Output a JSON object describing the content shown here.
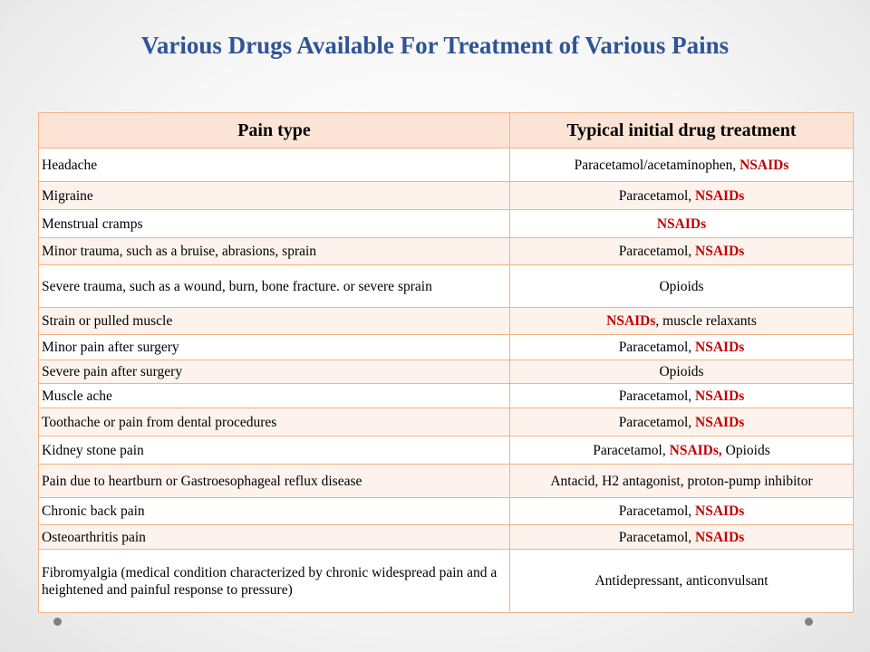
{
  "title": "Various Drugs Available For Treatment of Various Pains",
  "table": {
    "headers": [
      "Pain type",
      "Typical initial drug treatment"
    ],
    "rows": [
      {
        "pain": "Headache",
        "treatment": [
          {
            "t": "Paracetamol/acetaminophen, ",
            "hl": false
          },
          {
            "t": "NSAIDs",
            "hl": true
          }
        ]
      },
      {
        "pain": "Migraine",
        "treatment": [
          {
            "t": "Paracetamol, ",
            "hl": false
          },
          {
            "t": "NSAIDs",
            "hl": true
          }
        ]
      },
      {
        "pain": "Menstrual cramps",
        "treatment": [
          {
            "t": "NSAIDs",
            "hl": true
          }
        ]
      },
      {
        "pain": "Minor trauma, such as a bruise, abrasions, sprain",
        "treatment": [
          {
            "t": "Paracetamol, ",
            "hl": false
          },
          {
            "t": "NSAIDs",
            "hl": true
          }
        ]
      },
      {
        "pain": "Severe trauma, such as a wound, burn, bone fracture. or severe sprain",
        "treatment": [
          {
            "t": "Opioids",
            "hl": false
          }
        ]
      },
      {
        "pain": "Strain or pulled muscle",
        "treatment": [
          {
            "t": "NSAIDs",
            "hl": true
          },
          {
            "t": ", muscle relaxants",
            "hl": false
          }
        ]
      },
      {
        "pain": "Minor pain after surgery",
        "treatment": [
          {
            "t": "Paracetamol, ",
            "hl": false
          },
          {
            "t": "NSAIDs",
            "hl": true
          }
        ]
      },
      {
        "pain": "Severe pain after surgery",
        "treatment": [
          {
            "t": "Opioids",
            "hl": false
          }
        ]
      },
      {
        "pain": "Muscle ache",
        "treatment": [
          {
            "t": "Paracetamol, ",
            "hl": false
          },
          {
            "t": "NSAIDs",
            "hl": true
          }
        ]
      },
      {
        "pain": "Toothache or pain from dental procedures",
        "treatment": [
          {
            "t": "Paracetamol, ",
            "hl": false
          },
          {
            "t": "NSAIDs",
            "hl": true
          }
        ]
      },
      {
        "pain": "Kidney stone pain",
        "treatment": [
          {
            "t": "Paracetamol, ",
            "hl": false
          },
          {
            "t": "NSAIDs,",
            "hl": true
          },
          {
            "t": " Opioids",
            "hl": false
          }
        ]
      },
      {
        "pain": "Pain due to heartburn or Gastroesophageal reflux disease",
        "treatment": [
          {
            "t": "Antacid, H2 antagonist, proton-pump inhibitor",
            "hl": false
          }
        ]
      },
      {
        "pain": "Chronic back pain",
        "treatment": [
          {
            "t": "Paracetamol, ",
            "hl": false
          },
          {
            "t": "NSAIDs",
            "hl": true
          }
        ]
      },
      {
        "pain": "Osteoarthritis pain",
        "treatment": [
          {
            "t": "Paracetamol, ",
            "hl": false
          },
          {
            "t": "NSAIDs",
            "hl": true
          }
        ]
      },
      {
        "pain": "Fibromyalgia (medical condition characterized by chronic widespread pain and a heightened and painful response to pressure)",
        "treatment": [
          {
            "t": "Antidepressant, anticonvulsant",
            "hl": false
          }
        ]
      }
    ]
  },
  "colors": {
    "title": "#2f5496",
    "highlight": "#c00000",
    "border": "#f4b183"
  }
}
